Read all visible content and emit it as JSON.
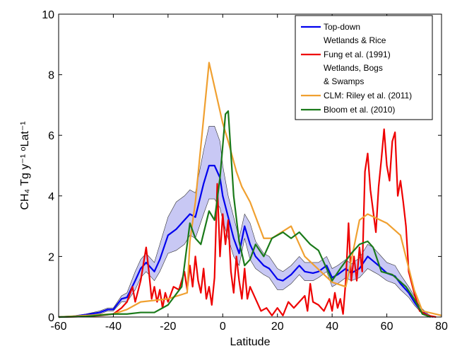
{
  "chart_data": {
    "type": "line",
    "xlabel": "Latitude",
    "ylabel": "CH₄ Tg y⁻¹ ᵒLat⁻¹",
    "xlim": [
      -60,
      80
    ],
    "xticks": [
      -60,
      -40,
      -20,
      0,
      20,
      40,
      60,
      80
    ],
    "ylim": [
      0,
      10
    ],
    "yticks": [
      0,
      2,
      4,
      6,
      8,
      10
    ],
    "legend": "upper right",
    "series": [
      {
        "name": [
          "Top-down",
          "Wetlands & Rice"
        ],
        "color": "#0000ee",
        "band_color": "#c8c8f4",
        "x": [
          -60,
          -55,
          -50,
          -45,
          -42,
          -40,
          -37,
          -35,
          -32,
          -30,
          -28,
          -26,
          -25,
          -23,
          -20,
          -17,
          -14,
          -12,
          -10,
          -7,
          -5,
          -3,
          -1,
          0,
          2,
          4,
          6,
          8,
          10,
          12,
          15,
          17,
          20,
          22,
          25,
          28,
          30,
          33,
          35,
          38,
          40,
          42,
          45,
          47,
          50,
          53,
          55,
          57,
          60,
          63,
          65,
          68,
          70,
          72,
          75,
          77
        ],
        "values": [
          0,
          0.02,
          0.08,
          0.15,
          0.25,
          0.25,
          0.6,
          0.65,
          1.2,
          1.6,
          1.8,
          1.6,
          1.5,
          1.9,
          2.7,
          2.9,
          3.2,
          3.4,
          3.3,
          4.4,
          5.0,
          5.0,
          4.6,
          4.0,
          3.3,
          2.6,
          2.1,
          3.0,
          2.4,
          2.0,
          1.7,
          1.6,
          1.25,
          1.2,
          1.4,
          1.7,
          1.5,
          1.45,
          1.5,
          1.7,
          1.3,
          1.4,
          1.6,
          1.45,
          1.6,
          2.0,
          1.85,
          1.7,
          1.45,
          1.35,
          1.1,
          0.8,
          0.5,
          0.25,
          0.05,
          0
        ],
        "upper": [
          0,
          0.03,
          0.1,
          0.2,
          0.3,
          0.3,
          0.7,
          0.8,
          1.5,
          1.9,
          2.1,
          1.9,
          1.8,
          2.4,
          3.3,
          3.8,
          4.0,
          4.2,
          4.1,
          5.5,
          6.3,
          6.3,
          5.8,
          5.0,
          4.0,
          3.3,
          2.6,
          3.4,
          3.1,
          2.5,
          2.1,
          2.0,
          1.6,
          1.5,
          1.7,
          2.0,
          1.8,
          1.8,
          1.8,
          2.0,
          1.6,
          1.7,
          1.9,
          1.75,
          1.95,
          2.4,
          2.3,
          2.1,
          1.8,
          1.7,
          1.4,
          1.0,
          0.7,
          0.35,
          0.1,
          0
        ],
        "lower": [
          0,
          0.01,
          0.06,
          0.1,
          0.2,
          0.2,
          0.5,
          0.5,
          0.9,
          1.3,
          1.5,
          1.3,
          1.2,
          1.5,
          2.1,
          2.2,
          2.4,
          2.7,
          2.6,
          3.4,
          3.9,
          3.9,
          3.6,
          3.2,
          2.6,
          2.0,
          1.7,
          2.6,
          1.9,
          1.6,
          1.4,
          1.3,
          0.9,
          0.9,
          1.1,
          1.4,
          1.2,
          1.2,
          1.3,
          1.5,
          1.0,
          1.1,
          1.3,
          1.2,
          1.3,
          1.6,
          1.5,
          1.4,
          1.2,
          1.1,
          0.9,
          0.65,
          0.4,
          0.2,
          0.02,
          0
        ]
      },
      {
        "name": [
          "Fung et al. (1991)",
          "Wetlands, Bogs",
          "& Swamps"
        ],
        "color": "#ee0000",
        "x": [
          -60,
          -50,
          -45,
          -40,
          -37,
          -35,
          -33,
          -32,
          -30,
          -28,
          -27,
          -26,
          -25,
          -24,
          -23,
          -22,
          -21,
          -20,
          -18,
          -16,
          -14,
          -13,
          -12,
          -11,
          -10,
          -9,
          -8,
          -7,
          -6,
          -5,
          -4,
          -3,
          -2,
          -1,
          0,
          1,
          2,
          3,
          4,
          5,
          6,
          7,
          8,
          9,
          10,
          12,
          14,
          16,
          18,
          20,
          22,
          24,
          26,
          28,
          30,
          31,
          32,
          33,
          35,
          37,
          39,
          40,
          41,
          42,
          43,
          44,
          45,
          46,
          47,
          48,
          49,
          50,
          51,
          52,
          53,
          54,
          55,
          56,
          57,
          58,
          59,
          60,
          61,
          62,
          63,
          64,
          65,
          66,
          67,
          68,
          70,
          72,
          75,
          78
        ],
        "values": [
          0,
          0.02,
          0.05,
          0.1,
          0.3,
          0.5,
          1.0,
          0.5,
          1.2,
          2.3,
          1.5,
          0.6,
          1.0,
          0.5,
          0.9,
          0.3,
          0.8,
          0.5,
          1.0,
          0.9,
          1.5,
          0.9,
          1.7,
          1.0,
          2.0,
          1.2,
          0.8,
          1.6,
          0.6,
          1.0,
          0.4,
          1.3,
          4.4,
          2.0,
          3.4,
          2.4,
          3.2,
          1.5,
          0.8,
          2.0,
          1.2,
          0.6,
          1.6,
          0.6,
          1.0,
          0.6,
          0.2,
          0.3,
          0.05,
          0.3,
          0.05,
          0.5,
          0.3,
          0.5,
          0.7,
          0.2,
          1.1,
          0.5,
          0.4,
          0.2,
          0.6,
          0.2,
          0.8,
          0.3,
          0.6,
          0.1,
          1.2,
          3.1,
          1.2,
          2.0,
          1.2,
          2.3,
          1.5,
          4.8,
          5.4,
          4.2,
          3.5,
          2.8,
          4.3,
          5.2,
          6.2,
          5.0,
          4.5,
          5.8,
          6.1,
          4.0,
          4.5,
          3.8,
          3.0,
          1.5,
          0.8,
          0.2,
          0.05,
          0
        ]
      },
      {
        "name": [
          "CLM: Riley et al. (2011)"
        ],
        "color": "#f0a030",
        "x": [
          -60,
          -50,
          -40,
          -35,
          -30,
          -20,
          -13,
          -12,
          -10,
          -5,
          0,
          2,
          5,
          7,
          10,
          15,
          18,
          25,
          30,
          40,
          45,
          50,
          53,
          60,
          65,
          70,
          73,
          80
        ],
        "values": [
          0,
          0.05,
          0.1,
          0.25,
          0.5,
          0.6,
          0.8,
          2.5,
          3.8,
          8.4,
          6.4,
          5.8,
          4.8,
          4.3,
          3.8,
          2.6,
          2.6,
          3.0,
          2.0,
          1.15,
          1.0,
          3.2,
          3.4,
          3.1,
          2.7,
          0.9,
          0.2,
          0.05
        ]
      },
      {
        "name": [
          "Bloom et al. (2010)"
        ],
        "color": "#1a7a1a",
        "x": [
          -60,
          -50,
          -40,
          -35,
          -30,
          -25,
          -20,
          -15,
          -12,
          -10,
          -8,
          -5,
          -3,
          -1,
          1,
          2,
          4,
          6,
          8,
          10,
          12,
          15,
          18,
          22,
          25,
          28,
          32,
          35,
          38,
          40,
          43,
          47,
          50,
          53,
          55,
          58,
          62,
          67,
          70,
          73,
          76
        ],
        "values": [
          0,
          0.02,
          0.1,
          0.1,
          0.15,
          0.15,
          0.4,
          1.0,
          3.1,
          2.6,
          2.4,
          3.5,
          3.2,
          4.6,
          6.7,
          6.8,
          4.0,
          2.5,
          1.7,
          1.9,
          2.4,
          2.0,
          2.6,
          2.8,
          2.6,
          2.8,
          2.4,
          2.2,
          1.6,
          1.2,
          1.6,
          2.1,
          2.4,
          2.5,
          2.3,
          1.5,
          1.4,
          1.0,
          0.6,
          0.1,
          0
        ]
      }
    ]
  }
}
